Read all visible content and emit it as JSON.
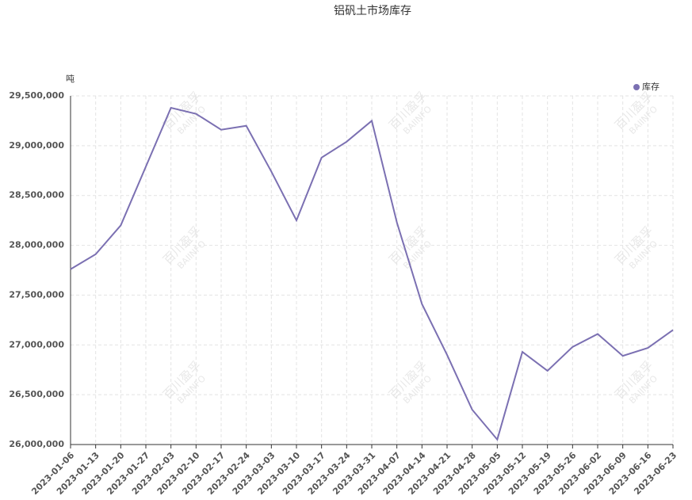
{
  "chart_data": {
    "type": "line",
    "title": "铝矾土市场库存",
    "y_label": "吨",
    "watermark": [
      "百川盈孚",
      "BAIINFO"
    ],
    "categories": [
      "2023-01-06",
      "2023-01-13",
      "2023-01-20",
      "2023-01-27",
      "2023-02-03",
      "2023-02-10",
      "2023-02-17",
      "2023-02-24",
      "2023-03-03",
      "2023-03-10",
      "2023-03-17",
      "2023-03-24",
      "2023-03-31",
      "2023-04-07",
      "2023-04-14",
      "2023-04-21",
      "2023-04-28",
      "2023-05-05",
      "2023-05-12",
      "2023-05-19",
      "2023-05-26",
      "2023-06-02",
      "2023-06-09",
      "2023-06-16",
      "2023-06-23"
    ],
    "series": [
      {
        "name": "库存",
        "color": "#7b70b2",
        "values": [
          27760000,
          27910000,
          28200000,
          28790000,
          29380000,
          29320000,
          29160000,
          29200000,
          28740000,
          28250000,
          28880000,
          29040000,
          29250000,
          28230000,
          27410000,
          26900000,
          26350000,
          26050000,
          26930000,
          26740000,
          26980000,
          27110000,
          26890000,
          26970000,
          27150000
        ]
      }
    ],
    "ylim": [
      26000000,
      29500000
    ],
    "yticks": [
      {
        "value": 26000000,
        "label": "26,000,000"
      },
      {
        "value": 26500000,
        "label": "26,500,000"
      },
      {
        "value": 27000000,
        "label": "27,000,000"
      },
      {
        "value": 27500000,
        "label": "27,500,000"
      },
      {
        "value": 28000000,
        "label": "28,000,000"
      },
      {
        "value": 28500000,
        "label": "28,500,000"
      },
      {
        "value": 29000000,
        "label": "29,000,000"
      },
      {
        "value": 29500000,
        "label": "29,500,000"
      }
    ],
    "grid": true,
    "legend": "top-right"
  }
}
